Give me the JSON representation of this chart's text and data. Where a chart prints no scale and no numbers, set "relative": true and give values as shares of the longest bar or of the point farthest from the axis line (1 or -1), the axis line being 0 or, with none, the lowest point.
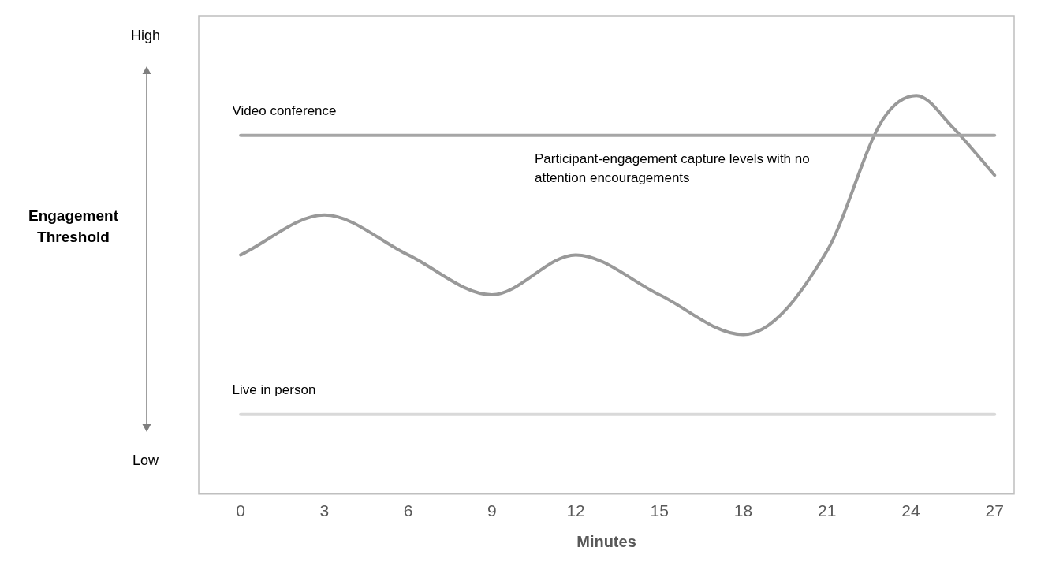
{
  "chart_data": {
    "type": "line",
    "relative": true,
    "xlabel": "Minutes",
    "annotations": [
      "High",
      "Low",
      "Engagement Threshold",
      "Participant-engagement capture levels with no attention encouragements"
    ],
    "xlim": [
      -1.5,
      27.7
    ],
    "xticks": [
      0,
      3,
      6,
      9,
      12,
      15,
      18,
      21,
      24,
      27
    ],
    "grid": false,
    "legend": false,
    "marker": "none",
    "line_style": "solid",
    "series": [
      {
        "name": "Video conference",
        "color": "#a6a6a6",
        "x": [
          0,
          27
        ],
        "values": [
          0.9,
          0.9
        ]
      },
      {
        "color": "#999999",
        "x": [
          0,
          3,
          6,
          9,
          12,
          15,
          18,
          21,
          23,
          24.2,
          25.5,
          27
        ],
        "values": [
          0.6,
          0.7,
          0.6,
          0.5,
          0.6,
          0.5,
          0.4,
          0.61,
          0.94,
          1,
          0.92,
          0.8
        ]
      },
      {
        "name": "Live in person",
        "color": "#d9d9d9",
        "x": [
          0,
          27
        ],
        "values": [
          0.2,
          0.2
        ]
      }
    ]
  }
}
